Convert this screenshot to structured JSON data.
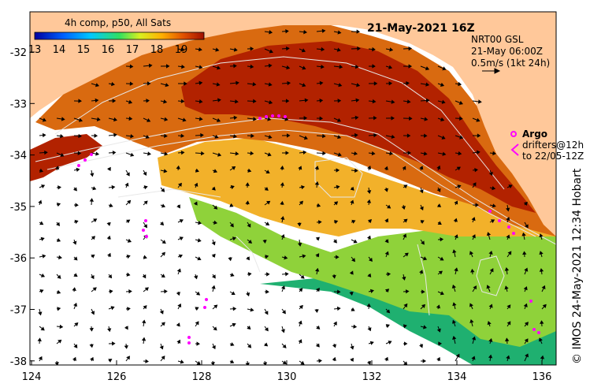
{
  "header": {
    "composite_label": "4h comp, p50, All Sats",
    "datetime": "21-May-2021 16Z",
    "current_product": "NRT00 GSL",
    "current_time": "21-May 06:00Z",
    "vector_scale": "0.5m/s (1kt 24h)"
  },
  "colorbar": {
    "ticks": [
      "13",
      "14",
      "15",
      "16",
      "17",
      "18",
      "19"
    ]
  },
  "legend": {
    "argo_label": "Argo",
    "drifters_line1": "drifters@12h",
    "drifters_line2": "to 22/05-12Z",
    "argo_color": "#ff00ff"
  },
  "axes": {
    "x_ticks": [
      "124",
      "126",
      "128",
      "130",
      "132",
      "134",
      "136"
    ],
    "y_ticks": [
      "-32",
      "-33",
      "-34",
      "-35",
      "-36",
      "-37",
      "-38"
    ]
  },
  "credit": "© IMOS 24-May-2021 12:34 Hobart",
  "colors": {
    "land": "#ffc89a",
    "sst_hot": "#b22200",
    "sst_warm": "#d96a10",
    "sst_mid": "#f2b12a",
    "sst_cool": "#8fd23a",
    "sst_cold": "#1fb070"
  }
}
